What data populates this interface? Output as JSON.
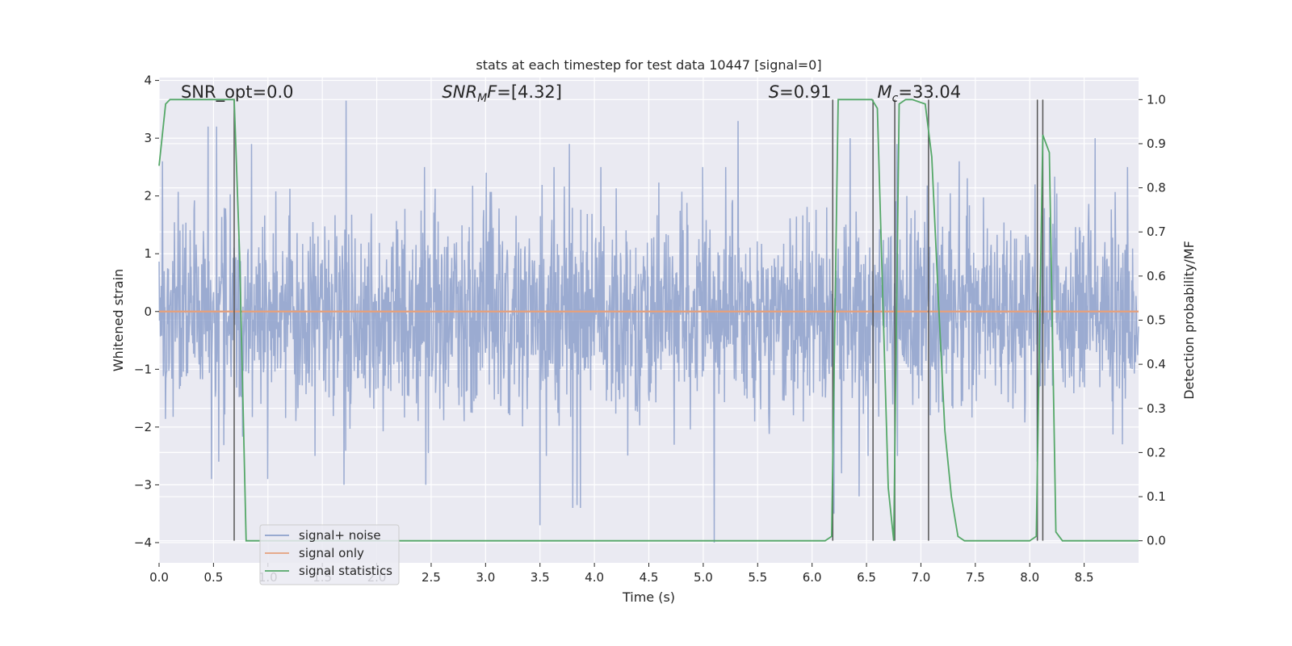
{
  "chart_data": {
    "type": "line",
    "title": "stats at each timestep for test data 10447 [signal=0]",
    "xlabel": "Time (s)",
    "ylabel_left": "Whitened strain",
    "ylabel_right": "Detection probability/MF",
    "xlim": [
      0.0,
      9.0
    ],
    "ylim_left": [
      -4.35,
      4.05
    ],
    "ylim_right": [
      -0.05,
      1.05
    ],
    "x_ticks": [
      0.0,
      0.5,
      1.0,
      1.5,
      2.0,
      2.5,
      3.0,
      3.5,
      4.0,
      4.5,
      5.0,
      5.5,
      6.0,
      6.5,
      7.0,
      7.5,
      8.0,
      8.5
    ],
    "x_tick_labels": [
      "0.0",
      "0.5",
      "1.0",
      "1.5",
      "2.0",
      "2.5",
      "3.0",
      "3.5",
      "4.0",
      "4.5",
      "5.0",
      "5.5",
      "6.0",
      "6.5",
      "7.0",
      "7.5",
      "8.0",
      "8.5"
    ],
    "y_left_ticks": [
      4,
      3,
      2,
      1,
      0,
      -1,
      -2,
      -3,
      -4
    ],
    "y_left_tick_labels": [
      "4",
      "3",
      "2",
      "1",
      "0",
      "−1",
      "−2",
      "−3",
      "−4"
    ],
    "y_right_ticks": [
      1.0,
      0.9,
      0.8,
      0.7,
      0.6,
      0.5,
      0.4,
      0.3,
      0.2,
      0.1,
      0.0
    ],
    "y_right_tick_labels": [
      "1.0",
      "0.9",
      "0.8",
      "0.7",
      "0.6",
      "0.5",
      "0.4",
      "0.3",
      "0.2",
      "0.1",
      "0.0"
    ],
    "grid": true,
    "legend_location": "lower-left",
    "annotations": [
      {
        "text": "SNR_opt=0.0",
        "x": 0.2
      },
      {
        "text": "SNR_MF=[4.32]",
        "x": 2.6,
        "math": true,
        "base": "SNR",
        "sub": "M",
        "tail": "F=[4.32]"
      },
      {
        "text": "S=0.91",
        "x": 5.6,
        "math": true,
        "base": "S",
        "sub": "",
        "tail": "=0.91"
      },
      {
        "text": "M_c=33.04",
        "x": 6.6,
        "math": true,
        "base": "M",
        "sub": "c",
        "tail": "=33.04"
      }
    ],
    "annotation_y_left": 3.8,
    "noise": {
      "name": "signal+ noise",
      "color": "#8da0cb",
      "duration": 9.0,
      "seed": 10447,
      "n_samples": 2300,
      "sigma": 0.85,
      "peaks": [
        {
          "t": 0.03,
          "v": 2.6
        },
        {
          "t": 0.45,
          "v": 3.2
        },
        {
          "t": 0.53,
          "v": 3.2
        },
        {
          "t": 0.48,
          "v": -2.9
        },
        {
          "t": 0.55,
          "v": -2.6
        },
        {
          "t": 0.85,
          "v": 2.9
        },
        {
          "t": 1.0,
          "v": -2.9
        },
        {
          "t": 1.72,
          "v": 3.65
        },
        {
          "t": 1.7,
          "v": -3.0
        },
        {
          "t": 2.45,
          "v": -3.0
        },
        {
          "t": 3.5,
          "v": -3.7
        },
        {
          "t": 3.63,
          "v": 2.5
        },
        {
          "t": 3.77,
          "v": 2.9
        },
        {
          "t": 3.8,
          "v": -3.4
        },
        {
          "t": 3.84,
          "v": -3.35
        },
        {
          "t": 3.87,
          "v": -3.4
        },
        {
          "t": 5.1,
          "v": -4.0
        },
        {
          "t": 5.32,
          "v": 3.3
        },
        {
          "t": 6.2,
          "v": -3.5
        },
        {
          "t": 6.27,
          "v": -2.8
        },
        {
          "t": 6.35,
          "v": 3.0
        },
        {
          "t": 6.43,
          "v": -3.2
        },
        {
          "t": 6.78,
          "v": 2.9
        },
        {
          "t": 7.35,
          "v": 2.6
        },
        {
          "t": 8.05,
          "v": 2.2
        },
        {
          "t": 8.07,
          "v": -2.6
        },
        {
          "t": 8.6,
          "v": 3.0
        },
        {
          "t": 8.85,
          "v": -2.3
        },
        {
          "t": 8.9,
          "v": 2.5
        }
      ]
    },
    "signal_only": {
      "name": "signal only",
      "color": "#e5a07c",
      "value": 0.0
    },
    "statistics": {
      "name": "signal statistics",
      "color": "#55a868",
      "x": [
        0.0,
        0.06,
        0.1,
        0.69,
        0.74,
        0.8,
        6.12,
        6.18,
        6.24,
        6.55,
        6.6,
        6.7,
        6.75,
        6.8,
        6.86,
        6.92,
        7.04,
        7.1,
        7.16,
        7.22,
        7.28,
        7.34,
        7.4,
        8.0,
        8.06,
        8.12,
        8.18,
        8.24,
        8.3,
        8.36,
        9.0
      ],
      "y": [
        0.85,
        0.99,
        1.0,
        1.0,
        0.65,
        0.0,
        0.0,
        0.01,
        1.0,
        1.0,
        0.98,
        0.12,
        0.0,
        0.99,
        1.0,
        1.0,
        0.99,
        0.87,
        0.55,
        0.25,
        0.1,
        0.01,
        0.0,
        0.0,
        0.01,
        0.92,
        0.88,
        0.02,
        0.0,
        0.0,
        0.0
      ]
    },
    "markers": {
      "color": "#555555",
      "times": [
        0.69,
        6.19,
        6.56,
        6.76,
        7.07,
        8.07,
        8.12
      ]
    }
  }
}
